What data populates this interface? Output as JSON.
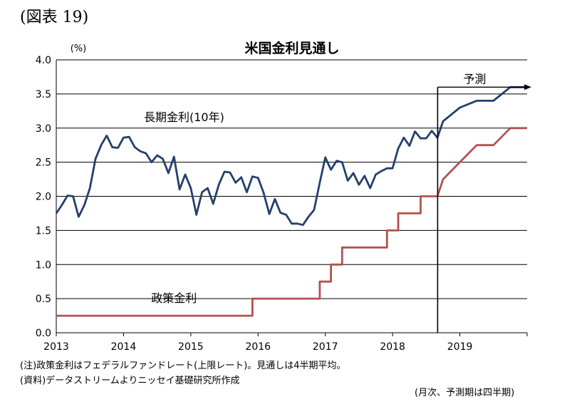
{
  "figure_label": "(図表 19)",
  "notes": {
    "note1": "(注)政策金利はフェデラルファンドレート(上限レート)。見通しは4半期平均。",
    "note2": "(資料)データストリームよりニッセイ基礎研究所作成",
    "note3": "(月次、予測期は四半期)"
  },
  "chart_data": {
    "type": "line",
    "title": "米国金利見通し",
    "ylabel": "(%)",
    "xlabel": "",
    "ylim": [
      0,
      4.0
    ],
    "xlim": [
      2013.0,
      2020.0
    ],
    "yticks": [
      "0.0",
      "0.5",
      "1.0",
      "1.5",
      "2.0",
      "2.5",
      "3.0",
      "3.5",
      "4.0"
    ],
    "xticks": [
      "2013",
      "2014",
      "2015",
      "2016",
      "2017",
      "2018",
      "2019"
    ],
    "grid": "horizontal",
    "forecast_start": 2018.67,
    "annotations": {
      "forecast": "予測"
    },
    "colors": {
      "long_term": "#243f6b",
      "policy": "#b5504f",
      "grid": "#000000"
    },
    "series": [
      {
        "name": "長期金利(10年)",
        "label_pos": [
          2014.9,
          3.1
        ],
        "x": [
          2013.0,
          2013.083,
          2013.167,
          2013.25,
          2013.333,
          2013.417,
          2013.5,
          2013.583,
          2013.667,
          2013.75,
          2013.833,
          2013.917,
          2014.0,
          2014.083,
          2014.167,
          2014.25,
          2014.333,
          2014.417,
          2014.5,
          2014.583,
          2014.667,
          2014.75,
          2014.833,
          2014.917,
          2015.0,
          2015.083,
          2015.167,
          2015.25,
          2015.333,
          2015.417,
          2015.5,
          2015.583,
          2015.667,
          2015.75,
          2015.833,
          2015.917,
          2016.0,
          2016.083,
          2016.167,
          2016.25,
          2016.333,
          2016.417,
          2016.5,
          2016.583,
          2016.667,
          2016.75,
          2016.833,
          2016.917,
          2017.0,
          2017.083,
          2017.167,
          2017.25,
          2017.333,
          2017.417,
          2017.5,
          2017.583,
          2017.667,
          2017.75,
          2017.833,
          2017.917,
          2018.0,
          2018.083,
          2018.167,
          2018.25,
          2018.333,
          2018.417,
          2018.5,
          2018.583,
          2018.667,
          2018.75,
          2019.0,
          2019.25,
          2019.5,
          2019.75,
          2020.0
        ],
        "values": [
          1.75,
          1.87,
          2.01,
          2.0,
          1.7,
          1.87,
          2.12,
          2.55,
          2.75,
          2.89,
          2.72,
          2.71,
          2.86,
          2.87,
          2.72,
          2.66,
          2.63,
          2.5,
          2.6,
          2.55,
          2.34,
          2.58,
          2.1,
          2.32,
          2.12,
          1.73,
          2.06,
          2.12,
          1.89,
          2.17,
          2.36,
          2.35,
          2.2,
          2.28,
          2.06,
          2.29,
          2.27,
          2.05,
          1.74,
          1.96,
          1.76,
          1.73,
          1.6,
          1.6,
          1.58,
          1.7,
          1.8,
          2.2,
          2.57,
          2.39,
          2.52,
          2.5,
          2.23,
          2.34,
          2.17,
          2.3,
          2.12,
          2.32,
          2.37,
          2.41,
          2.41,
          2.7,
          2.86,
          2.74,
          2.95,
          2.85,
          2.85,
          2.96,
          2.86,
          3.1,
          3.3,
          3.4,
          3.4,
          3.6,
          3.6
        ]
      },
      {
        "name": "政策金利",
        "label_pos": [
          2014.75,
          0.45
        ],
        "x": [
          2013.0,
          2015.917,
          2015.917,
          2016.917,
          2016.917,
          2017.083,
          2017.083,
          2017.25,
          2017.25,
          2017.417,
          2017.417,
          2017.917,
          2017.917,
          2018.083,
          2018.083,
          2018.25,
          2018.25,
          2018.417,
          2018.417,
          2018.583,
          2018.583,
          2018.667,
          2018.75,
          2019.0,
          2019.25,
          2019.5,
          2019.75,
          2020.0
        ],
        "values": [
          0.25,
          0.25,
          0.5,
          0.5,
          0.75,
          0.75,
          1.0,
          1.0,
          1.25,
          1.25,
          1.25,
          1.25,
          1.5,
          1.5,
          1.75,
          1.75,
          1.75,
          1.75,
          2.0,
          2.0,
          2.0,
          2.0,
          2.25,
          2.5,
          2.75,
          2.75,
          3.0,
          3.0
        ]
      }
    ]
  }
}
